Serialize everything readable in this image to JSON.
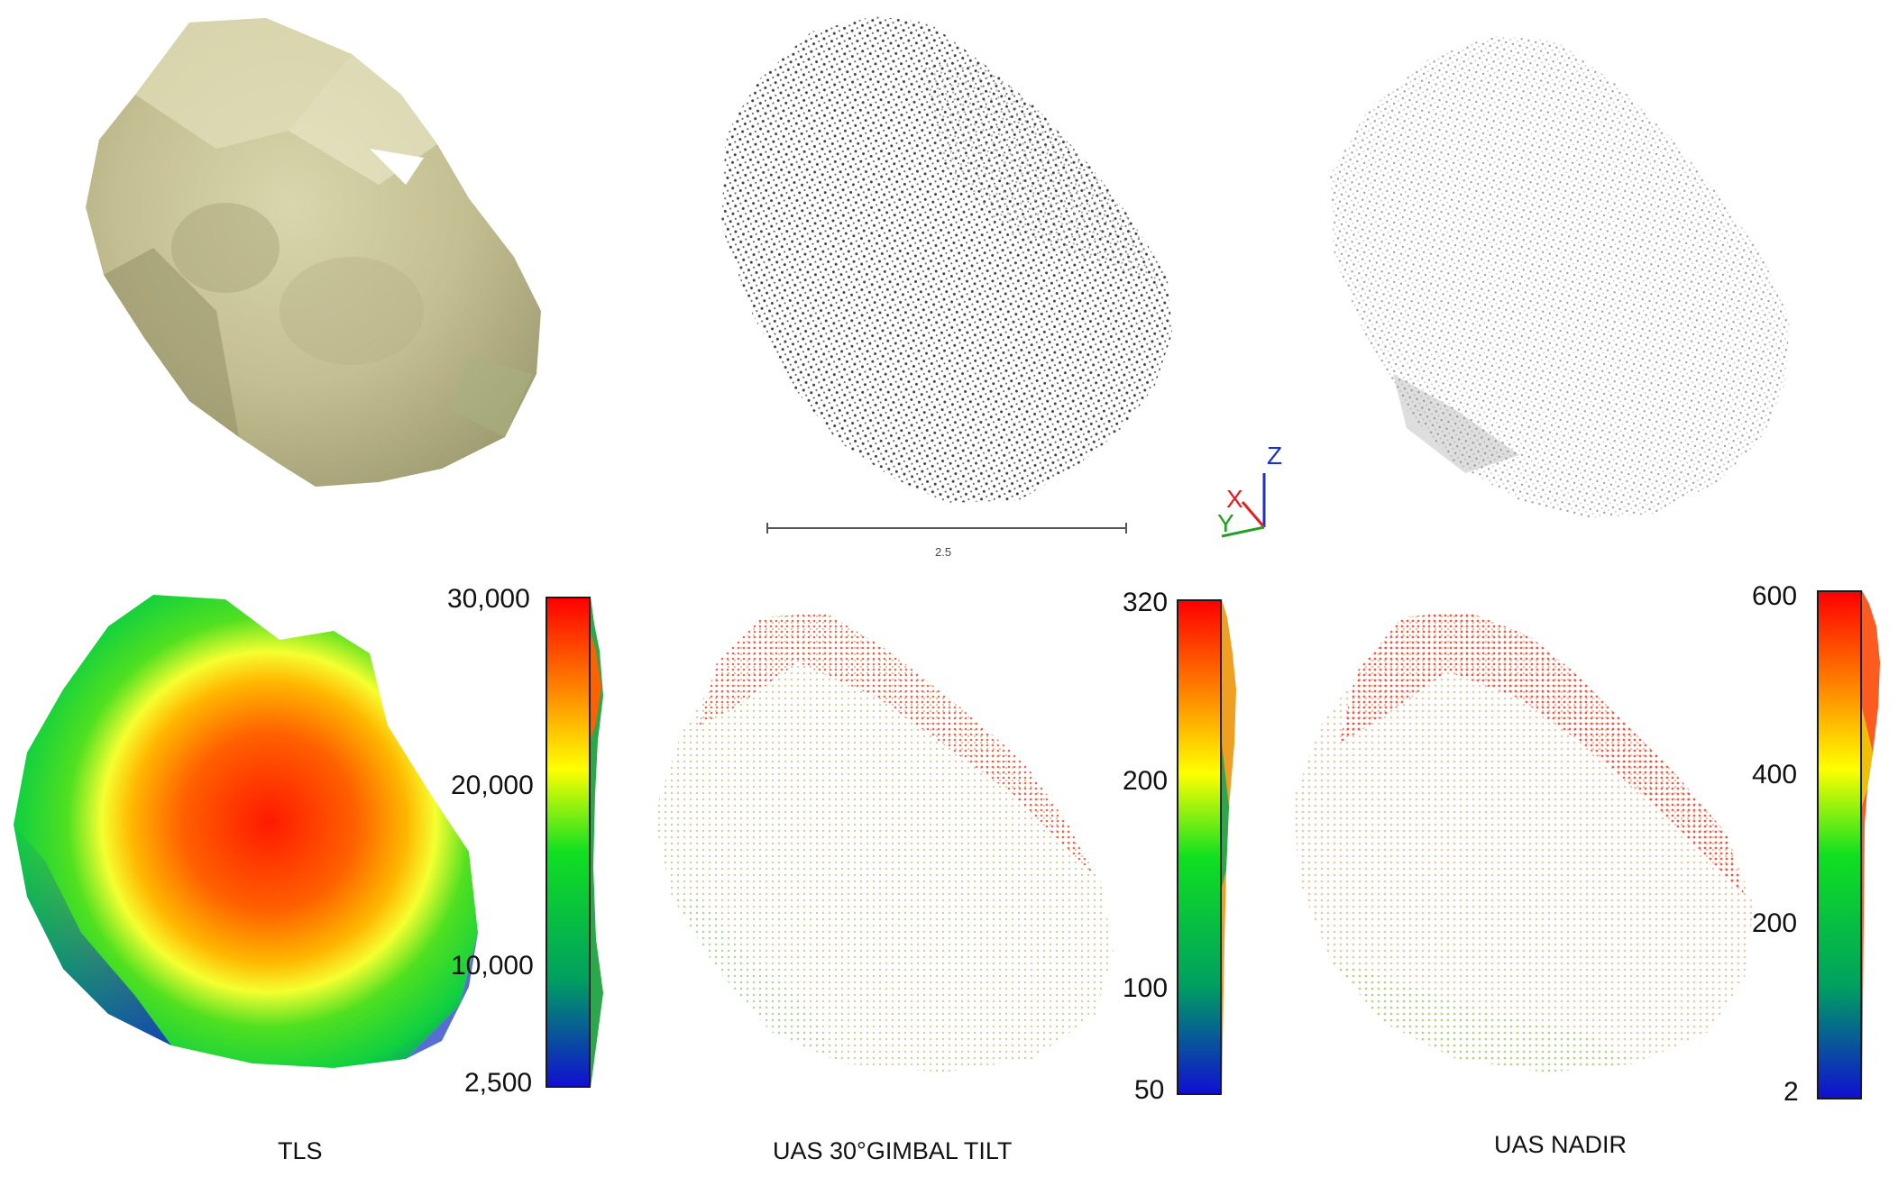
{
  "scale_bar": {
    "label": "2.5"
  },
  "axis_triad": {
    "z": "Z",
    "x": "X",
    "y": "Y"
  },
  "panels": [
    {
      "caption": "TLS",
      "colorbar_ticks": [
        "30,000",
        "20,000",
        "10,000",
        "2,500"
      ]
    },
    {
      "caption": "UAS 30°GIMBAL TILT",
      "colorbar_ticks": [
        "320",
        "200",
        "100",
        "50"
      ]
    },
    {
      "caption": "UAS NADIR",
      "colorbar_ticks": [
        "600",
        "400",
        "200",
        "2"
      ]
    }
  ],
  "colors": {
    "rock": "#c9c59a",
    "ramp": [
      "#1010d0",
      "#00a060",
      "#10e020",
      "#ffff00",
      "#ff8000",
      "#ff0000"
    ]
  }
}
